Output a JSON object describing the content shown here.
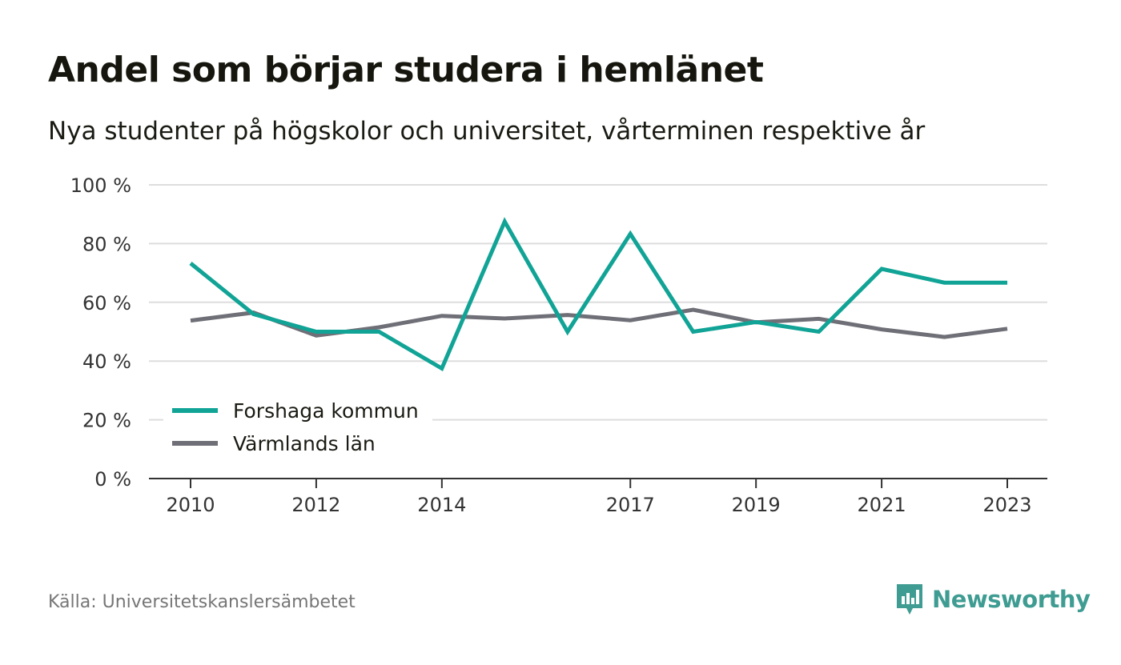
{
  "title": "Andel som börjar studera i hemlänet",
  "subtitle": "Nya studenter på högskolor och universitet, vårterminen respektive år",
  "source": "Källa: Universitetskanslersämbetet",
  "brand": {
    "name": "Newsworthy",
    "icon": "newsworthy-logo-icon",
    "color": "#3f9c92"
  },
  "chart_data": {
    "type": "line",
    "x": [
      2010,
      2011,
      2012,
      2013,
      2014,
      2015,
      2016,
      2017,
      2018,
      2019,
      2020,
      2021,
      2022,
      2023
    ],
    "x_tick_labels": [
      "2010",
      "2012",
      "2014",
      "2017",
      "2019",
      "2021",
      "2023"
    ],
    "ylim": [
      0,
      100
    ],
    "y_ticks": [
      0,
      20,
      40,
      60,
      80,
      100
    ],
    "y_tick_labels": [
      "0 %",
      "20 %",
      "40 %",
      "60 %",
      "80 %",
      "100 %"
    ],
    "grid": true,
    "legend_position": "bottom-left",
    "series": [
      {
        "name": "Forshaga kommun",
        "color": "#11a496",
        "values": [
          73.3,
          56.0,
          50.0,
          50.0,
          37.5,
          87.5,
          50.0,
          83.3,
          50.0,
          53.3,
          50.0,
          71.4,
          66.7,
          66.7
        ]
      },
      {
        "name": "Värmlands län",
        "color": "#6f6f78",
        "values": [
          53.8,
          56.5,
          48.7,
          51.5,
          55.4,
          54.5,
          55.7,
          53.9,
          57.5,
          53.2,
          54.4,
          50.8,
          48.2,
          51.0
        ]
      }
    ]
  }
}
